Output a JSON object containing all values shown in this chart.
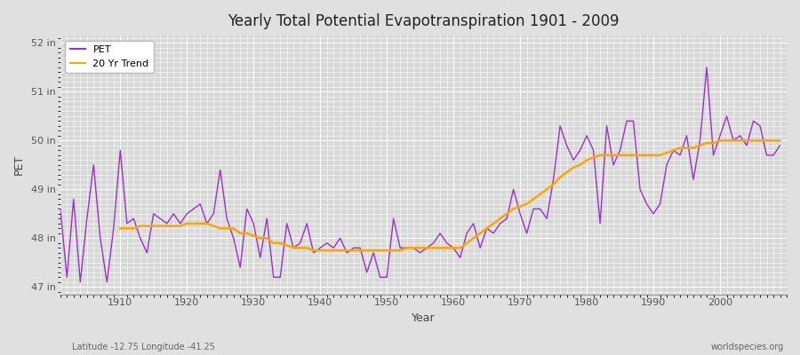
{
  "title": "Yearly Total Potential Evapotranspiration 1901 - 2009",
  "xlabel": "Year",
  "ylabel": "PET",
  "subtitle": "Latitude -12.75 Longitude -41.25",
  "watermark": "worldspecies.org",
  "pet_color": "#9932CC",
  "trend_color": "#FFA500",
  "bg_color": "#E0E0E0",
  "plot_bg_color": "#D8D8D8",
  "grid_color": "#FFFFFF",
  "ylim": [
    46.85,
    52.15
  ],
  "ytick_labels": [
    "47 in",
    "48 in",
    "49 in",
    "50 in",
    "51 in",
    "52 in"
  ],
  "ytick_values": [
    47,
    48,
    49,
    50,
    51,
    52
  ],
  "years": [
    1901,
    1902,
    1903,
    1904,
    1905,
    1906,
    1907,
    1908,
    1909,
    1910,
    1911,
    1912,
    1913,
    1914,
    1915,
    1916,
    1917,
    1918,
    1919,
    1920,
    1921,
    1922,
    1923,
    1924,
    1925,
    1926,
    1927,
    1928,
    1929,
    1930,
    1931,
    1932,
    1933,
    1934,
    1935,
    1936,
    1937,
    1938,
    1939,
    1940,
    1941,
    1942,
    1943,
    1944,
    1945,
    1946,
    1947,
    1948,
    1949,
    1950,
    1951,
    1952,
    1953,
    1954,
    1955,
    1956,
    1957,
    1958,
    1959,
    1960,
    1961,
    1962,
    1963,
    1964,
    1965,
    1966,
    1967,
    1968,
    1969,
    1970,
    1971,
    1972,
    1973,
    1974,
    1975,
    1976,
    1977,
    1978,
    1979,
    1980,
    1981,
    1982,
    1983,
    1984,
    1985,
    1986,
    1987,
    1988,
    1989,
    1990,
    1991,
    1992,
    1993,
    1994,
    1995,
    1996,
    1997,
    1998,
    1999,
    2000,
    2001,
    2002,
    2003,
    2004,
    2005,
    2006,
    2007,
    2008,
    2009
  ],
  "pet_values": [
    48.6,
    47.2,
    48.8,
    47.1,
    48.4,
    49.5,
    48.0,
    47.1,
    48.2,
    49.8,
    48.3,
    48.4,
    48.0,
    47.7,
    48.5,
    48.4,
    48.3,
    48.5,
    48.3,
    48.5,
    48.6,
    48.7,
    48.3,
    48.5,
    49.4,
    48.4,
    48.0,
    47.4,
    48.6,
    48.3,
    47.6,
    48.4,
    47.2,
    47.2,
    48.3,
    47.8,
    47.9,
    48.3,
    47.7,
    47.8,
    47.9,
    47.8,
    48.0,
    47.7,
    47.8,
    47.8,
    47.3,
    47.7,
    47.2,
    47.2,
    48.4,
    47.8,
    47.8,
    47.8,
    47.7,
    47.8,
    47.9,
    48.1,
    47.9,
    47.8,
    47.6,
    48.1,
    48.3,
    47.8,
    48.2,
    48.1,
    48.3,
    48.4,
    49.0,
    48.5,
    48.1,
    48.6,
    48.6,
    48.4,
    49.2,
    50.3,
    49.9,
    49.6,
    49.8,
    50.1,
    49.8,
    48.3,
    50.3,
    49.5,
    49.8,
    50.4,
    50.4,
    49.0,
    48.7,
    48.5,
    48.7,
    49.5,
    49.8,
    49.7,
    50.1,
    49.2,
    50.0,
    51.5,
    49.7,
    50.1,
    50.5,
    50.0,
    50.1,
    49.9,
    50.4,
    50.3,
    49.7,
    49.7,
    49.9
  ],
  "trend_values": [
    null,
    null,
    null,
    null,
    null,
    null,
    null,
    null,
    null,
    48.2,
    48.2,
    48.2,
    48.25,
    48.25,
    48.25,
    48.25,
    48.25,
    48.25,
    48.25,
    48.3,
    48.3,
    48.3,
    48.3,
    48.25,
    48.2,
    48.2,
    48.2,
    48.1,
    48.1,
    48.05,
    48.0,
    48.0,
    47.9,
    47.9,
    47.85,
    47.8,
    47.8,
    47.8,
    47.75,
    47.75,
    47.75,
    47.75,
    47.75,
    47.75,
    47.75,
    47.75,
    47.75,
    47.75,
    47.75,
    47.75,
    47.75,
    47.75,
    47.8,
    47.8,
    47.8,
    47.8,
    47.8,
    47.8,
    47.8,
    47.8,
    47.8,
    47.9,
    48.0,
    48.1,
    48.2,
    48.3,
    48.4,
    48.5,
    48.6,
    48.65,
    48.7,
    48.8,
    48.9,
    49.0,
    49.1,
    49.25,
    49.35,
    49.45,
    49.5,
    49.6,
    49.65,
    49.7,
    49.7,
    49.7,
    49.7,
    49.7,
    49.7,
    49.7,
    49.7,
    49.7,
    49.7,
    49.75,
    49.8,
    49.85,
    49.85,
    49.85,
    49.9,
    49.95,
    49.95,
    50.0,
    50.0,
    50.0,
    50.0,
    50.0,
    50.0,
    50.0,
    50.0,
    50.0,
    50.0
  ]
}
